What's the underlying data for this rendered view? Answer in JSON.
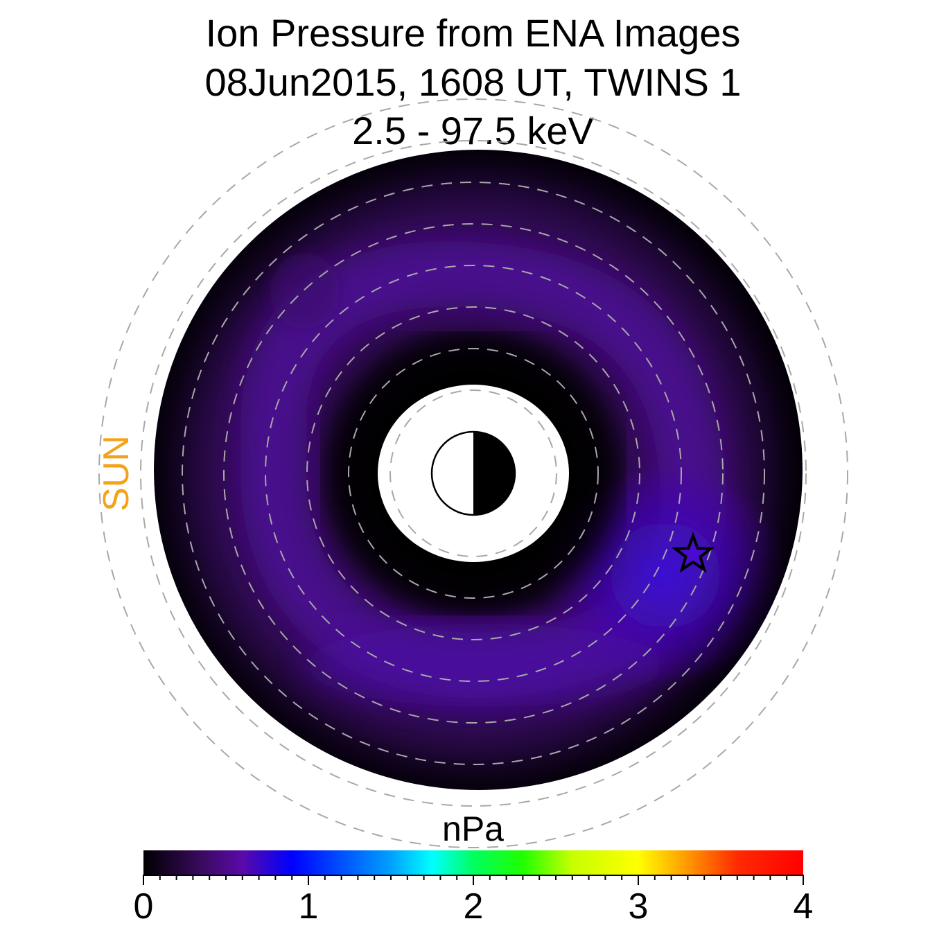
{
  "title": {
    "line1": "Ion Pressure from  ENA Images",
    "line2": "08Jun2015, 1608 UT,  TWINS 1",
    "line3": "2.5 - 97.5 keV"
  },
  "sun_label": "SUN",
  "colorbar": {
    "unit": "nPa",
    "min": 0,
    "max": 4,
    "ticks": [
      "0",
      "1",
      "2",
      "3",
      "4"
    ],
    "minor_per_major": 10,
    "stops": [
      {
        "v": 0.0,
        "color": "#000000"
      },
      {
        "v": 0.35,
        "color": "#3a0a5e"
      },
      {
        "v": 0.6,
        "color": "#5a0aa8"
      },
      {
        "v": 0.9,
        "color": "#0000ff"
      },
      {
        "v": 1.5,
        "color": "#00a0ff"
      },
      {
        "v": 1.75,
        "color": "#00ffff"
      },
      {
        "v": 2.0,
        "color": "#00ff60"
      },
      {
        "v": 2.3,
        "color": "#20ff00"
      },
      {
        "v": 2.6,
        "color": "#c8ff00"
      },
      {
        "v": 3.0,
        "color": "#ffff00"
      },
      {
        "v": 3.3,
        "color": "#ff9800"
      },
      {
        "v": 3.6,
        "color": "#ff2a00"
      },
      {
        "v": 4.0,
        "color": "#ff0000"
      }
    ]
  },
  "chart_data": {
    "type": "heatmap",
    "title": "Ion Pressure from  ENA Images 08Jun2015, 1608 UT,  TWINS 1 2.5 - 97.5 keV",
    "colorbar_label": "nPa",
    "range": [
      0,
      4
    ],
    "grid": true,
    "sun_direction": "left",
    "dashed_rings_count": 8,
    "pressure_colors": {
      "edge": "#000000",
      "background": "#2c0a4c",
      "ring": "#4e0a98",
      "peak": "#3a0ad8"
    },
    "peak_pressure_approx": 0.85,
    "marker": "star"
  }
}
